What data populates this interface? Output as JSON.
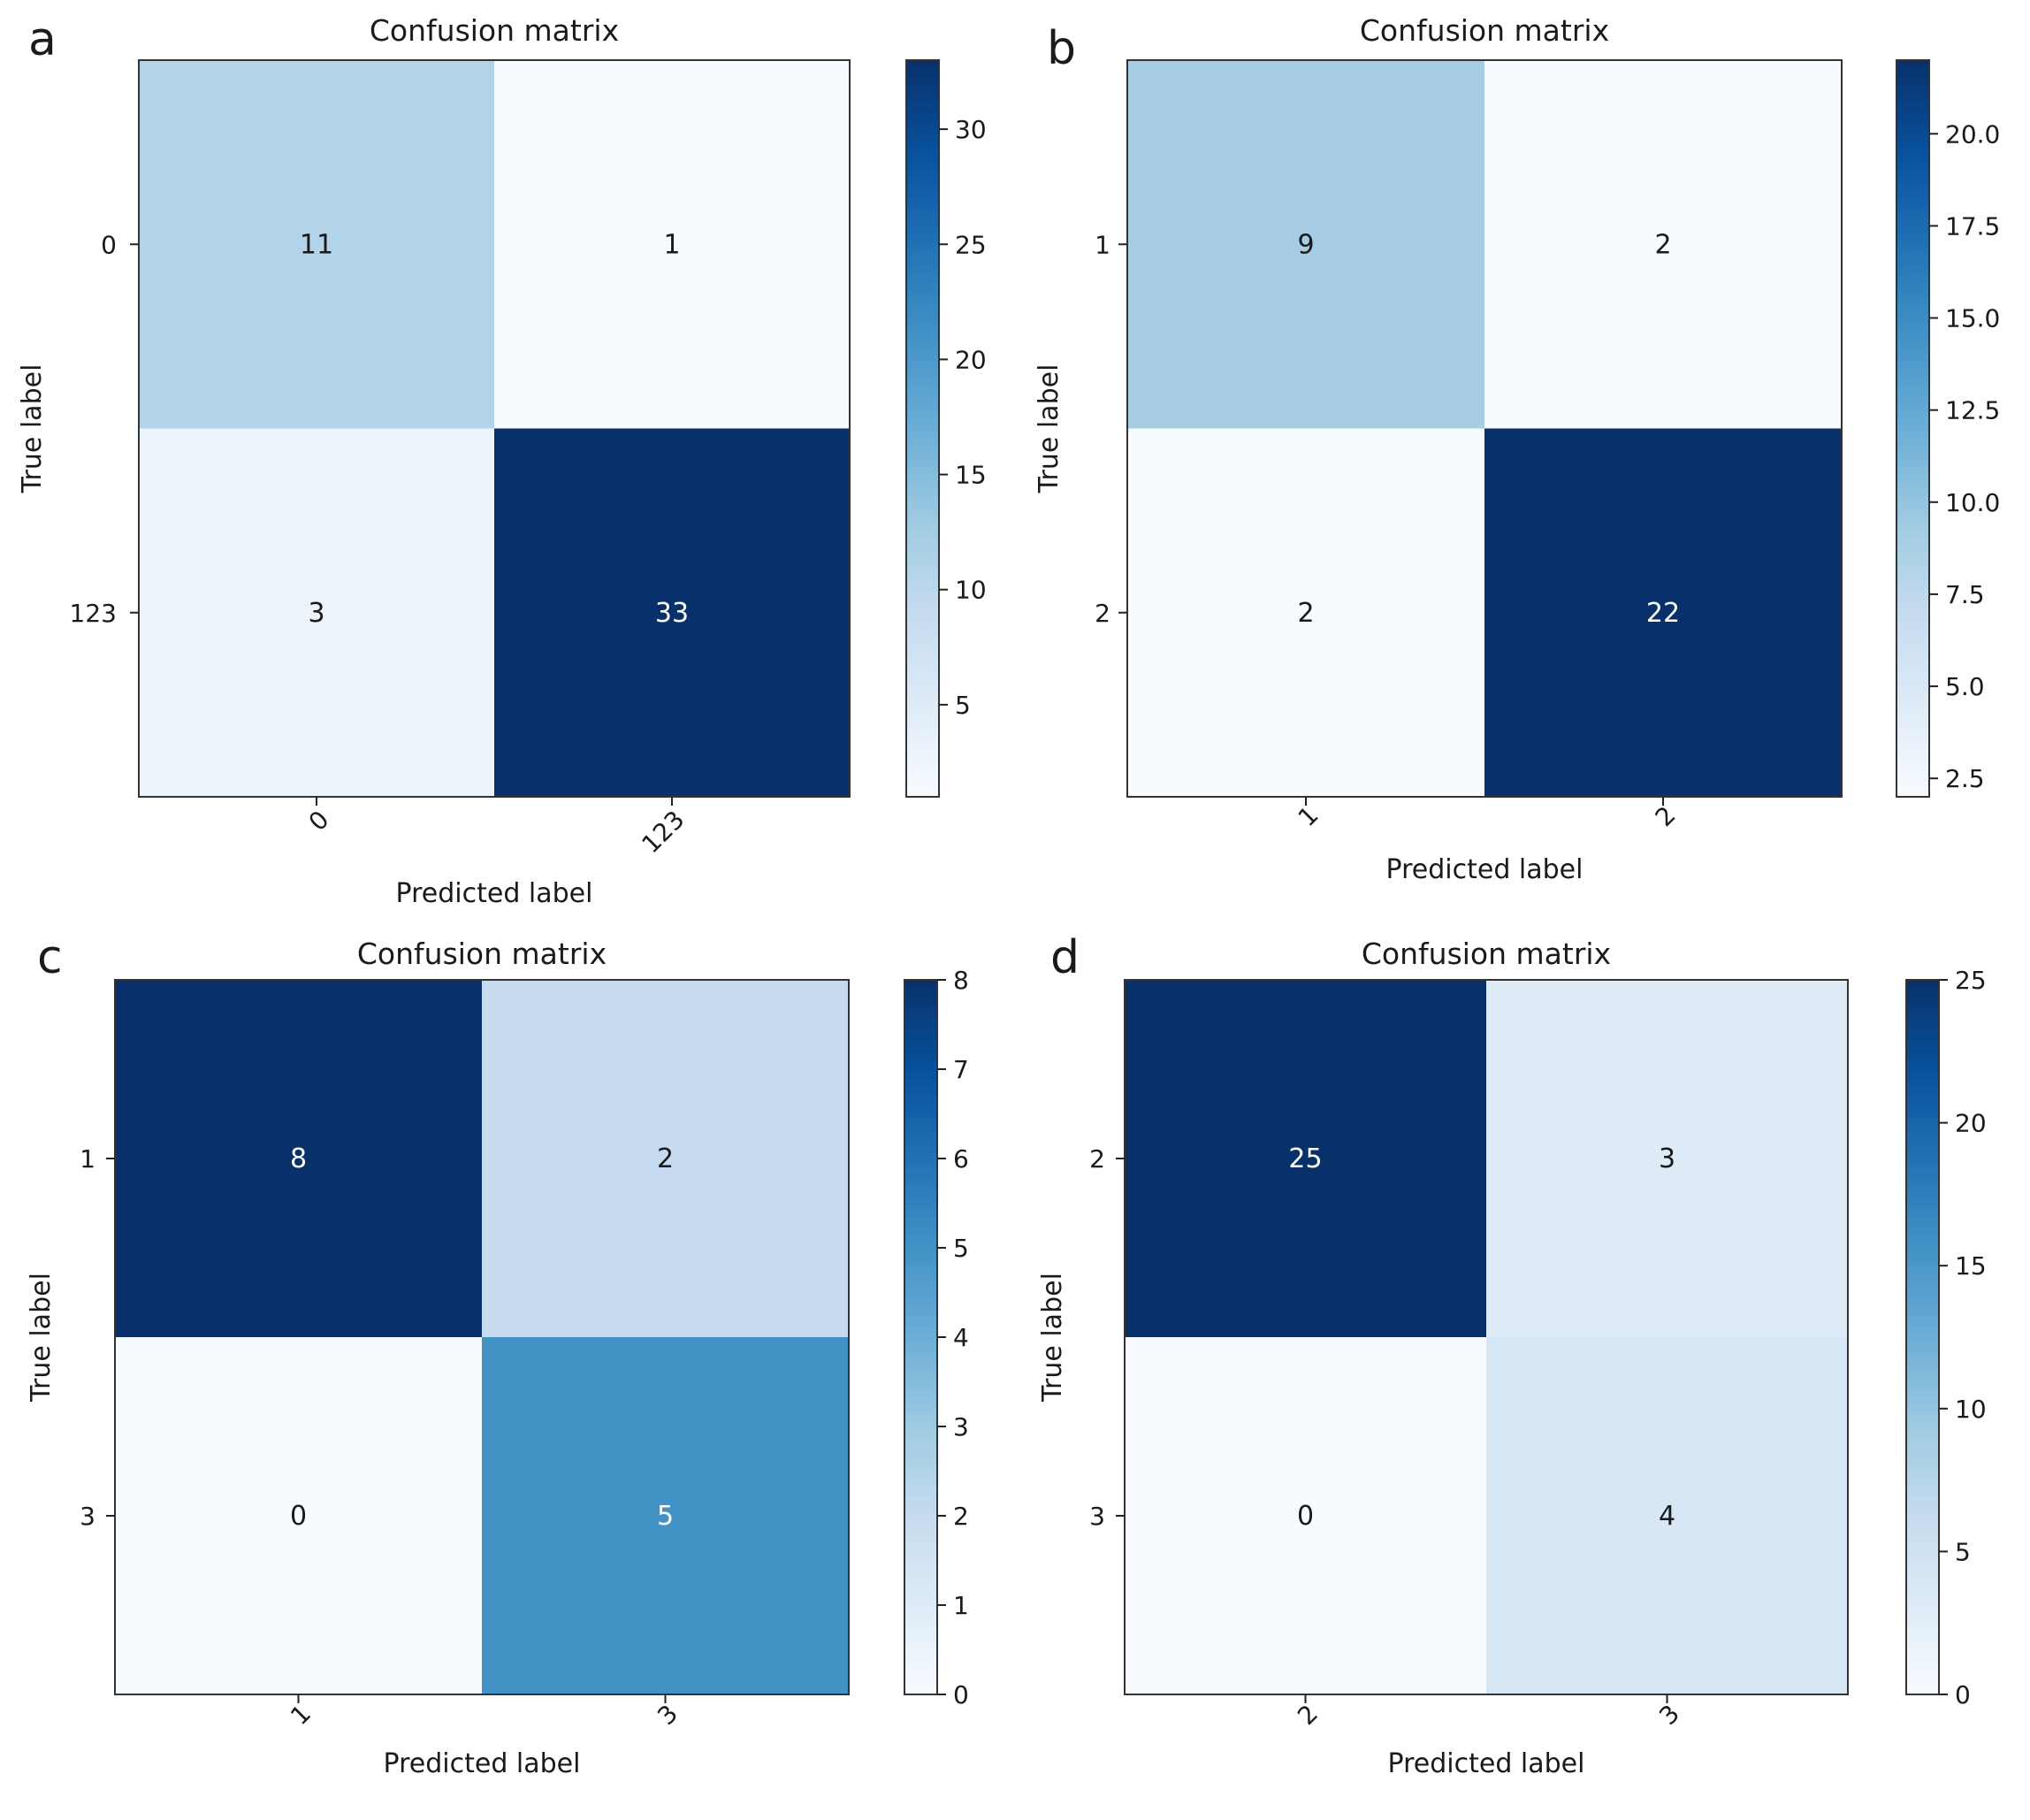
{
  "chart_data": [
    {
      "type": "heatmap",
      "panel_letter": "a",
      "title": "Confusion matrix",
      "xlabel": "Predicted label",
      "ylabel": "True label",
      "x_ticks": [
        "0",
        "123"
      ],
      "y_ticks": [
        "0",
        "123"
      ],
      "matrix": [
        [
          11,
          1
        ],
        [
          3,
          33
        ]
      ],
      "colorbar": {
        "range": [
          1,
          33
        ],
        "ticks": [
          "5",
          "10",
          "15",
          "20",
          "25",
          "30"
        ],
        "tick_values": [
          5,
          10,
          15,
          20,
          25,
          30
        ]
      },
      "colormap": "Blues"
    },
    {
      "type": "heatmap",
      "panel_letter": "b",
      "title": "Confusion matrix",
      "xlabel": "Predicted label",
      "ylabel": "True label",
      "x_ticks": [
        "1",
        "2"
      ],
      "y_ticks": [
        "1",
        "2"
      ],
      "matrix": [
        [
          9,
          2
        ],
        [
          2,
          22
        ]
      ],
      "colorbar": {
        "range": [
          2,
          22
        ],
        "ticks": [
          "2.5",
          "5.0",
          "7.5",
          "10.0",
          "12.5",
          "15.0",
          "17.5",
          "20.0"
        ],
        "tick_values": [
          2.5,
          5,
          7.5,
          10,
          12.5,
          15,
          17.5,
          20
        ]
      },
      "colormap": "Blues"
    },
    {
      "type": "heatmap",
      "panel_letter": "c",
      "title": "Confusion matrix",
      "xlabel": "Predicted label",
      "ylabel": "True label",
      "x_ticks": [
        "1",
        "3"
      ],
      "y_ticks": [
        "1",
        "3"
      ],
      "matrix": [
        [
          8,
          2
        ],
        [
          0,
          5
        ]
      ],
      "colorbar": {
        "range": [
          0,
          8
        ],
        "ticks": [
          "0",
          "1",
          "2",
          "3",
          "4",
          "5",
          "6",
          "7",
          "8"
        ],
        "tick_values": [
          0,
          1,
          2,
          3,
          4,
          5,
          6,
          7,
          8
        ]
      },
      "colormap": "Blues"
    },
    {
      "type": "heatmap",
      "panel_letter": "d",
      "title": "Confusion matrix",
      "xlabel": "Predicted label",
      "ylabel": "True label",
      "x_ticks": [
        "2",
        "3"
      ],
      "y_ticks": [
        "2",
        "3"
      ],
      "matrix": [
        [
          25,
          3
        ],
        [
          0,
          4
        ]
      ],
      "colorbar": {
        "range": [
          0,
          25
        ],
        "ticks": [
          "0",
          "5",
          "10",
          "15",
          "20",
          "25"
        ],
        "tick_values": [
          0,
          5,
          10,
          15,
          20,
          25
        ]
      },
      "colormap": "Blues"
    }
  ]
}
